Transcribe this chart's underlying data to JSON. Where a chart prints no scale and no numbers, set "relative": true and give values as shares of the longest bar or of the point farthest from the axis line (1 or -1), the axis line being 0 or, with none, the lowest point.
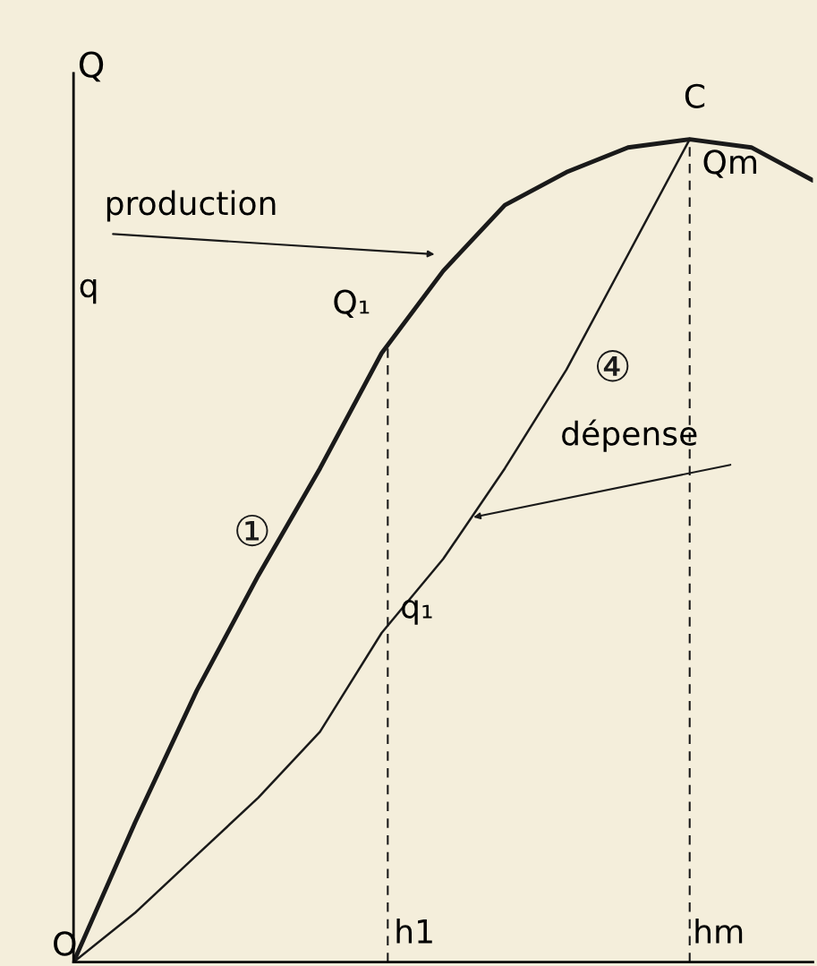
{
  "chart_data": {
    "type": "line",
    "relative": true,
    "ylabel": "Q",
    "categories": [
      null,
      null,
      null,
      null,
      null,
      null,
      null,
      null,
      null,
      null,
      null,
      null,
      null
    ],
    "series": [
      {
        "name": "①",
        "color": "#1a1a1a",
        "values": [
          0,
          0.17,
          0.33,
          0.47,
          0.6,
          0.74,
          0.84,
          0.92,
          0.96,
          0.99,
          1,
          0.99,
          0.95
        ]
      },
      {
        "name": "④",
        "color": "#1a1a1a",
        "values": [
          0,
          0.06,
          0.13,
          0.2,
          0.28,
          0.4,
          0.49,
          0.6,
          0.72,
          0.86,
          1,
          null,
          null
        ]
      }
    ],
    "annotations": [
      "q",
      "O",
      "Q₁",
      "q₁",
      "C",
      "Qm",
      "production",
      "dépense",
      "h1",
      "hm"
    ],
    "grid": false,
    "legend": false,
    "marker": "none",
    "line_style": "solid"
  }
}
